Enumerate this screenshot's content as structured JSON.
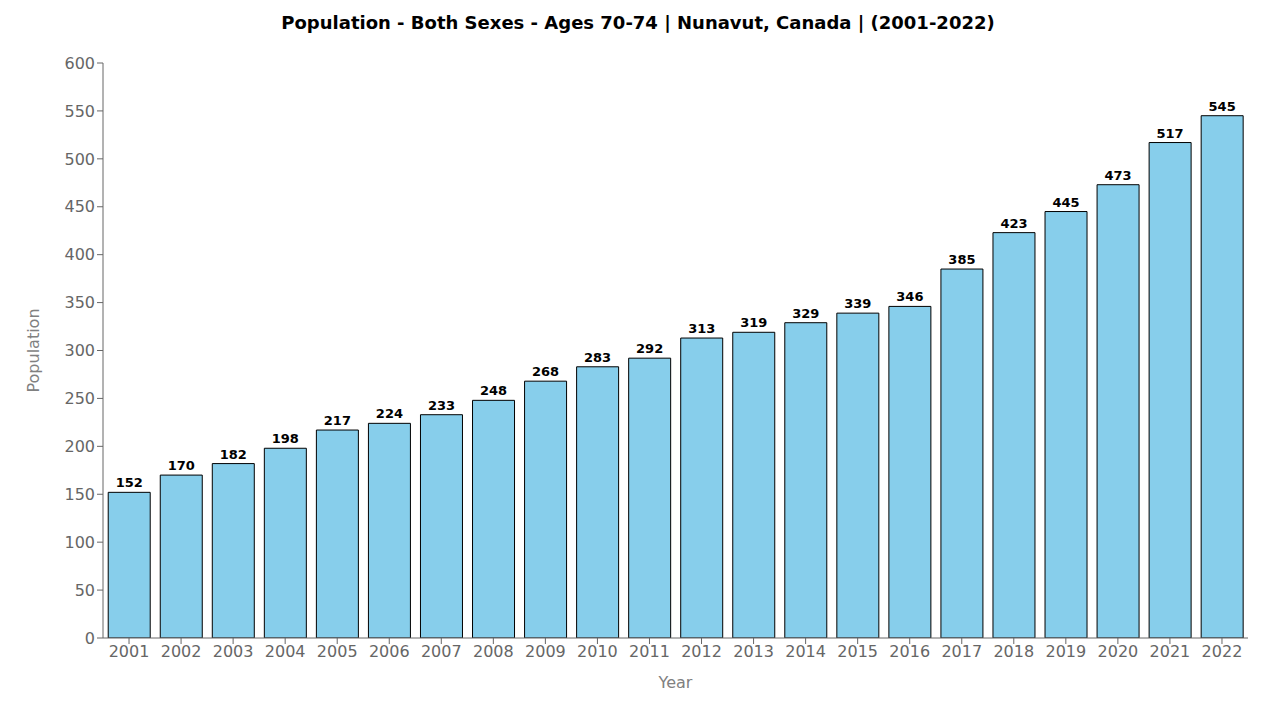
{
  "chart_data": {
    "type": "bar",
    "title": "Population - Both Sexes - Ages 70-74 | Nunavut, Canada |  (2001-2022)",
    "xlabel": "Year",
    "ylabel": "Population",
    "categories": [
      "2001",
      "2002",
      "2003",
      "2004",
      "2005",
      "2006",
      "2007",
      "2008",
      "2009",
      "2010",
      "2011",
      "2012",
      "2013",
      "2014",
      "2015",
      "2016",
      "2017",
      "2018",
      "2019",
      "2020",
      "2021",
      "2022"
    ],
    "values": [
      152,
      170,
      182,
      198,
      217,
      224,
      233,
      248,
      268,
      283,
      292,
      313,
      319,
      329,
      339,
      346,
      385,
      423,
      445,
      473,
      517,
      545
    ],
    "color": "#87CEEB",
    "ylim": [
      0,
      600
    ],
    "yticks": [
      0,
      50,
      100,
      150,
      200,
      250,
      300,
      350,
      400,
      450,
      500,
      550,
      600
    ],
    "grid": false,
    "data_labels": true
  }
}
